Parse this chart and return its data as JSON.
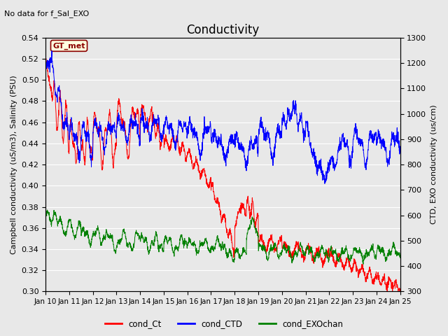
{
  "title": "Conductivity",
  "subtitle": "No data for f_Sal_EXO",
  "ylabel_left": "Campbell conductivity (uS/m3), Salinity (PSU)",
  "ylabel_right": "CTD, EXO conductivity (us/cm)",
  "ylim_left": [
    0.3,
    0.54
  ],
  "ylim_right": [
    300,
    1300
  ],
  "yticks_left": [
    0.3,
    0.32,
    0.34,
    0.36,
    0.38,
    0.4,
    0.42,
    0.44,
    0.46,
    0.48,
    0.5,
    0.52,
    0.54
  ],
  "yticks_right": [
    300,
    400,
    500,
    600,
    700,
    800,
    900,
    1000,
    1100,
    1200,
    1300
  ],
  "xtick_labels": [
    "Jan 10",
    "Jan 11",
    "Jan 12",
    "Jan 13",
    "Jan 14",
    "Jan 15",
    "Jan 16",
    "Jan 17",
    "Jan 18",
    "Jan 19",
    "Jan 20",
    "Jan 21",
    "Jan 22",
    "Jan 23",
    "Jan 24",
    "Jan 25"
  ],
  "background_color": "#e8e8e8"
}
